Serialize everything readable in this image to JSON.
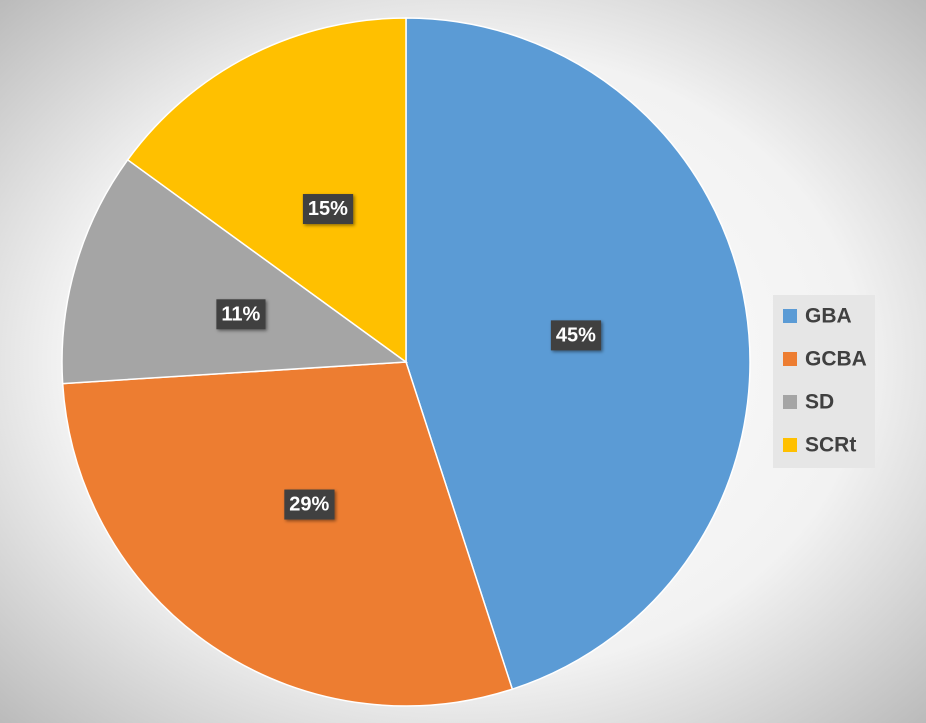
{
  "chart_data": {
    "type": "pie",
    "categories": [
      "GBA",
      "GCBA",
      "SD",
      "SCRt"
    ],
    "values": [
      45,
      29,
      11,
      15
    ],
    "value_labels": [
      "45%",
      "29%",
      "11%",
      "15%"
    ],
    "colors": [
      "#5b9bd5",
      "#ed7d31",
      "#a5a5a5",
      "#ffc000"
    ],
    "legend": "right"
  }
}
